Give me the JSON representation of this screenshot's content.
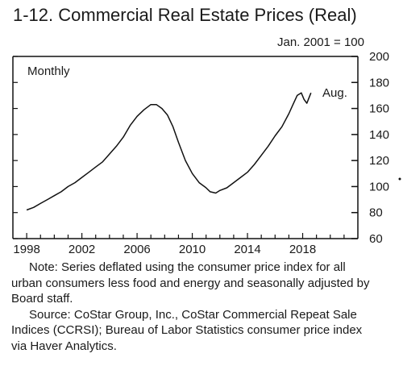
{
  "header": {
    "title": "1-12. Commercial Real Estate Prices (Real)",
    "units": "Jan. 2001 = 100"
  },
  "chart_data": {
    "type": "line",
    "title": "1-12. Commercial Real Estate Prices (Real)",
    "units_note": "Jan. 2001 = 100",
    "frequency_label": "Monthly",
    "end_label": "Aug.",
    "xlabel": "",
    "ylabel": "",
    "xlim": [
      1997,
      2022
    ],
    "ylim": [
      60,
      200
    ],
    "x_ticks": [
      1998,
      2002,
      2006,
      2010,
      2014,
      2018
    ],
    "y_ticks": [
      60,
      80,
      100,
      120,
      140,
      160,
      180,
      200
    ],
    "y_axis_side": "right",
    "grid": false,
    "line_color": "#111111",
    "series": [
      {
        "x": [
          1998.0,
          1998.5,
          1999.0,
          1999.5,
          2000.0,
          2000.5,
          2001.0,
          2001.5,
          2002.0,
          2002.5,
          2003.0,
          2003.5,
          2004.0,
          2004.5,
          2005.0,
          2005.5,
          2006.0,
          2006.5,
          2007.0,
          2007.4,
          2007.8,
          2008.2,
          2008.6,
          2009.0,
          2009.5,
          2010.0,
          2010.5,
          2011.0,
          2011.3,
          2011.7,
          2012.0,
          2012.5,
          2013.0,
          2013.5,
          2014.0,
          2014.5,
          2015.0,
          2015.5,
          2016.0,
          2016.5,
          2017.0,
          2017.3,
          2017.6,
          2017.9,
          2018.1,
          2018.3,
          2018.6
        ],
        "y": [
          82,
          84,
          87,
          90,
          93,
          96,
          100,
          103,
          107,
          111,
          115,
          119,
          125,
          131,
          138,
          147,
          154,
          159,
          163,
          163,
          160,
          155,
          146,
          134,
          120,
          110,
          103,
          99,
          96,
          95,
          97,
          99,
          103,
          107,
          111,
          117,
          124,
          131,
          139,
          146,
          156,
          163,
          170,
          172,
          167,
          164,
          172
        ]
      }
    ]
  }
}
